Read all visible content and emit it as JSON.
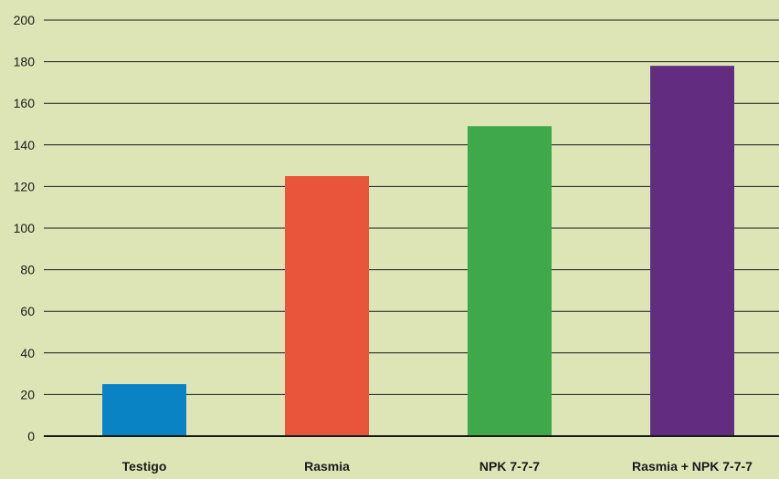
{
  "chart_data": {
    "type": "bar",
    "title": "",
    "xlabel": "",
    "ylabel": "",
    "categories": [
      "Testigo",
      "Rasmia",
      "NPK 7-7-7",
      "Rasmia + NPK 7-7-7"
    ],
    "values": [
      25,
      125,
      149,
      178
    ],
    "bar_colors": [
      "#0a83c4",
      "#e8553a",
      "#3fa84a",
      "#622d80"
    ],
    "ylim": [
      0,
      200
    ],
    "yticks": [
      0,
      20,
      40,
      60,
      80,
      100,
      120,
      140,
      160,
      180,
      200
    ],
    "grid": true,
    "legend": "none"
  },
  "colors": {
    "background": "#dde5b6",
    "gridline": "#1a1a1a",
    "axis": "#1a1a1a"
  }
}
